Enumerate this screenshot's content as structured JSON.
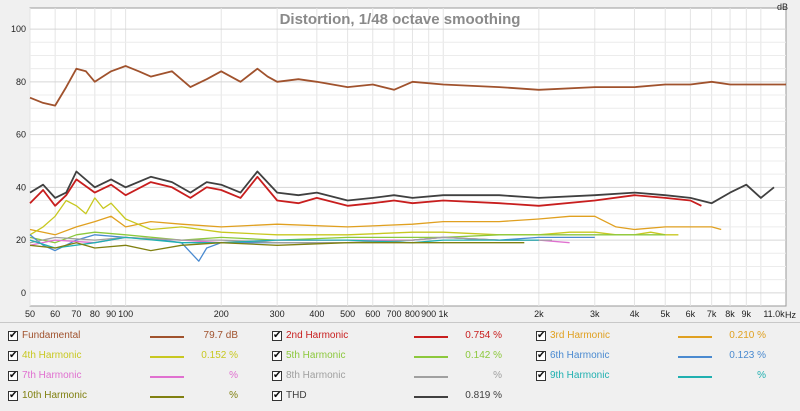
{
  "chart_data": {
    "type": "line",
    "title": "Distortion, 1/48 octave smoothing",
    "ylabel": "dB",
    "xunit": "Hz",
    "xscale": "log",
    "xlim": [
      50,
      12000
    ],
    "ylim": [
      -5,
      108
    ],
    "grid": true,
    "yticks": [
      0,
      20,
      40,
      60,
      80,
      100
    ],
    "xticks": [
      {
        "v": 50,
        "t": "50"
      },
      {
        "v": 60,
        "t": "60"
      },
      {
        "v": 70,
        "t": "70"
      },
      {
        "v": 80,
        "t": "80"
      },
      {
        "v": 90,
        "t": "90"
      },
      {
        "v": 100,
        "t": "100"
      },
      {
        "v": 200,
        "t": "200"
      },
      {
        "v": 300,
        "t": "300"
      },
      {
        "v": 400,
        "t": "400"
      },
      {
        "v": 500,
        "t": "500"
      },
      {
        "v": 600,
        "t": "600"
      },
      {
        "v": 700,
        "t": "700"
      },
      {
        "v": 800,
        "t": "800"
      },
      {
        "v": 900,
        "t": "900"
      },
      {
        "v": 1000,
        "t": "1k"
      },
      {
        "v": 2000,
        "t": "2k"
      },
      {
        "v": 3000,
        "t": "3k"
      },
      {
        "v": 4000,
        "t": "4k"
      },
      {
        "v": 5000,
        "t": "5k"
      },
      {
        "v": 6000,
        "t": "6k"
      },
      {
        "v": 7000,
        "t": "7k"
      },
      {
        "v": 8000,
        "t": "8k"
      },
      {
        "v": 9000,
        "t": "9k"
      },
      {
        "v": 11000,
        "t": "11.0k"
      }
    ],
    "series": [
      {
        "name": "Fundamental",
        "color": "#a0522d",
        "value": "79.7 dB",
        "x": [
          50,
          55,
          60,
          65,
          70,
          75,
          80,
          90,
          100,
          110,
          120,
          140,
          160,
          180,
          200,
          230,
          260,
          280,
          300,
          350,
          400,
          500,
          600,
          700,
          800,
          1000,
          1500,
          2000,
          3000,
          4000,
          5000,
          6000,
          7000,
          8000,
          9000,
          11000,
          12000
        ],
        "y": [
          74,
          72,
          71,
          78,
          85,
          84,
          80,
          84,
          86,
          84,
          82,
          84,
          78,
          81,
          84,
          80,
          85,
          82,
          80,
          81,
          80,
          78,
          79,
          77,
          80,
          79,
          78,
          77,
          78,
          78,
          79,
          79,
          80,
          79,
          79,
          79,
          79
        ]
      },
      {
        "name": "2nd Harmonic",
        "color": "#c81e1e",
        "value": "0.754 %",
        "x": [
          50,
          55,
          60,
          65,
          70,
          80,
          90,
          100,
          120,
          140,
          160,
          180,
          200,
          230,
          260,
          300,
          350,
          400,
          500,
          600,
          700,
          800,
          1000,
          1500,
          2000,
          3000,
          4000,
          5000,
          6000,
          6500
        ],
        "y": [
          34,
          39,
          33,
          37,
          43,
          38,
          41,
          37,
          42,
          40,
          36,
          40,
          39,
          36,
          44,
          35,
          34,
          36,
          33,
          34,
          35,
          34,
          35,
          34,
          33,
          35,
          37,
          36,
          35,
          33
        ]
      },
      {
        "name": "3rd Harmonic",
        "color": "#e0a020",
        "value": "0.210 %",
        "x": [
          50,
          60,
          70,
          80,
          90,
          100,
          120,
          150,
          200,
          300,
          500,
          800,
          1000,
          1500,
          2000,
          2500,
          3000,
          3500,
          4000,
          5000,
          6000,
          7000,
          7500
        ],
        "y": [
          24,
          22,
          25,
          27,
          29,
          25,
          27,
          26,
          25,
          26,
          25,
          26,
          27,
          27,
          28,
          29,
          29,
          25,
          24,
          25,
          25,
          25,
          24
        ]
      },
      {
        "name": "4th Harmonic",
        "color": "#c8c820",
        "value": "0.152 %",
        "x": [
          50,
          55,
          60,
          65,
          70,
          75,
          80,
          85,
          90,
          100,
          120,
          150,
          200,
          300,
          500,
          800,
          1000,
          1500,
          2000,
          2500,
          3000,
          3500,
          4000,
          4500,
          5000,
          5500
        ],
        "y": [
          22,
          25,
          29,
          35,
          33,
          30,
          36,
          32,
          34,
          28,
          24,
          25,
          23,
          22,
          22,
          23,
          23,
          22,
          22,
          23,
          23,
          22,
          22,
          23,
          22,
          22
        ]
      },
      {
        "name": "5th Harmonic",
        "color": "#8cc83c",
        "value": "0.142 %",
        "x": [
          50,
          60,
          70,
          80,
          100,
          150,
          200,
          300,
          500,
          800,
          1000,
          1500,
          2000,
          3000,
          4000,
          5000
        ],
        "y": [
          21,
          19,
          22,
          23,
          22,
          20,
          21,
          20,
          21,
          21,
          21,
          22,
          22,
          22,
          22,
          22
        ]
      },
      {
        "name": "6th Harmonic",
        "color": "#4a8ad0",
        "value": "0.123 %",
        "x": [
          50,
          55,
          60,
          70,
          80,
          100,
          130,
          150,
          170,
          180,
          200,
          300,
          500,
          800,
          1000,
          1500,
          2000,
          2500,
          3000
        ],
        "y": [
          22,
          18,
          16,
          20,
          22,
          21,
          20,
          19,
          12,
          17,
          19,
          19,
          19,
          20,
          21,
          20,
          21,
          21,
          21
        ]
      },
      {
        "name": "7th Harmonic",
        "color": "#e070d0",
        "value": "%",
        "x": [
          50,
          60,
          80,
          100,
          150,
          200,
          300,
          500,
          800,
          1000,
          1500,
          2000,
          2500
        ],
        "y": [
          18,
          20,
          19,
          21,
          20,
          19,
          20,
          20,
          20,
          21,
          20,
          20,
          19
        ]
      },
      {
        "name": "8th Harmonic",
        "color": "#a0a0a0",
        "value": "%",
        "x": [
          50,
          60,
          80,
          100,
          150,
          200,
          300,
          500,
          800,
          1000,
          1500,
          2000,
          2200
        ],
        "y": [
          19,
          21,
          20,
          21,
          20,
          20,
          19,
          19,
          20,
          21,
          20,
          20,
          20
        ]
      },
      {
        "name": "9th Harmonic",
        "color": "#20b0b0",
        "value": "%",
        "x": [
          50,
          60,
          80,
          100,
          150,
          200,
          300,
          500,
          800,
          1000,
          1500,
          2000
        ],
        "y": [
          20,
          17,
          19,
          21,
          19,
          19,
          20,
          20,
          19,
          20,
          20,
          20
        ]
      },
      {
        "name": "10th Harmonic",
        "color": "#808010",
        "value": "%",
        "x": [
          50,
          60,
          70,
          80,
          100,
          120,
          150,
          200,
          300,
          500,
          800,
          1000,
          1500,
          1800
        ],
        "y": [
          18,
          17,
          19,
          17,
          18,
          16,
          18,
          19,
          18,
          19,
          19,
          19,
          19,
          19
        ]
      },
      {
        "name": "THD",
        "color": "#404040",
        "value": "0.819 %",
        "x": [
          50,
          55,
          60,
          65,
          70,
          80,
          90,
          100,
          120,
          140,
          160,
          180,
          200,
          230,
          260,
          300,
          350,
          400,
          500,
          600,
          700,
          800,
          1000,
          1500,
          2000,
          3000,
          4000,
          5000,
          6000,
          7000,
          8000,
          9000,
          10000,
          11000
        ],
        "y": [
          38,
          41,
          36,
          38,
          46,
          40,
          43,
          40,
          44,
          42,
          38,
          42,
          41,
          38,
          46,
          38,
          37,
          38,
          35,
          36,
          37,
          36,
          37,
          37,
          36,
          37,
          38,
          37,
          36,
          34,
          38,
          41,
          36,
          40
        ]
      }
    ]
  }
}
